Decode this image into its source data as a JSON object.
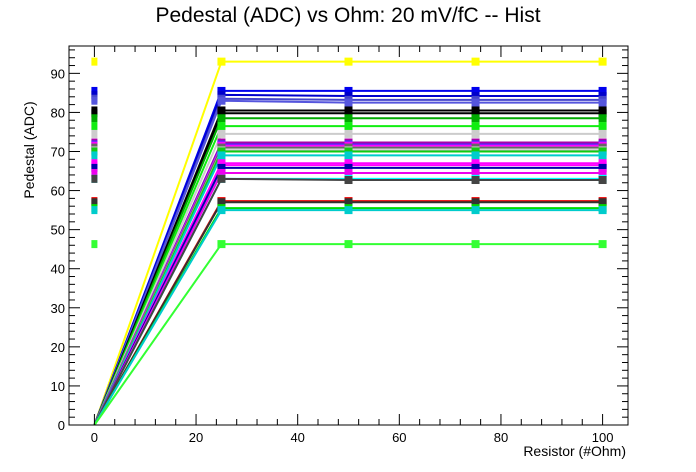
{
  "chart_data": {
    "type": "line",
    "title": "Pedestal (ADC) vs Ohm: 20 mV/fC -- Hist",
    "xlabel": "Resistor (#Ohm)",
    "ylabel": "Pedestal (ADC)",
    "xlim": [
      -5,
      105
    ],
    "ylim": [
      0,
      97
    ],
    "xticks": [
      0,
      20,
      40,
      60,
      80,
      100
    ],
    "yticks": [
      0,
      10,
      20,
      30,
      40,
      50,
      60,
      70,
      80,
      90
    ],
    "x": [
      0,
      25,
      50,
      75,
      100
    ],
    "grid": false,
    "legend": "none",
    "series": [
      {
        "color": "#ffff00",
        "values": [
          0,
          93,
          93,
          93,
          93
        ]
      },
      {
        "color": "#0000ee",
        "values": [
          0,
          85.5,
          85.5,
          85.5,
          85.5
        ]
      },
      {
        "color": "#0000cc",
        "values": [
          0,
          84.5,
          84.2,
          84.2,
          84.2
        ]
      },
      {
        "color": "#4444cc",
        "values": [
          0,
          83.5,
          83.2,
          83.2,
          83.2
        ]
      },
      {
        "color": "#5555dd",
        "values": [
          0,
          83,
          82.5,
          82.5,
          82.5
        ]
      },
      {
        "color": "#000000",
        "values": [
          0,
          80.5,
          80.5,
          80.5,
          80.5
        ]
      },
      {
        "color": "#000000",
        "values": [
          0,
          79.8,
          79.8,
          79.8,
          79.8
        ]
      },
      {
        "color": "#00aa00",
        "values": [
          0,
          78.5,
          78.5,
          78.5,
          78.5
        ]
      },
      {
        "color": "#11ee11",
        "values": [
          0,
          76.5,
          76.5,
          76.5,
          76.5
        ]
      },
      {
        "color": "#cccccc",
        "values": [
          0,
          74.5,
          74.5,
          74.5,
          74.5
        ]
      },
      {
        "color": "#aa00aa",
        "values": [
          0,
          72.3,
          72.3,
          72.3,
          72.3
        ]
      },
      {
        "color": "#3333ff",
        "values": [
          0,
          71.8,
          71.8,
          71.8,
          71.8
        ]
      },
      {
        "color": "#ff00ff",
        "values": [
          0,
          71.5,
          71.5,
          71.5,
          71.5
        ]
      },
      {
        "color": "#666666",
        "values": [
          0,
          71,
          71,
          71,
          71
        ]
      },
      {
        "color": "#bbbbbb",
        "values": [
          0,
          70.3,
          70.3,
          70.3,
          70.3
        ]
      },
      {
        "color": "#11cc11",
        "values": [
          0,
          70,
          70,
          70,
          70
        ]
      },
      {
        "color": "#00cccc",
        "values": [
          0,
          69,
          69,
          69,
          69
        ]
      },
      {
        "color": "#ff00ff",
        "values": [
          0,
          67,
          67,
          67,
          67
        ]
      },
      {
        "color": "#ff00ff",
        "values": [
          0,
          66.5,
          66.5,
          66.5,
          66.5
        ]
      },
      {
        "color": "#0000aa",
        "values": [
          0,
          65.8,
          65.8,
          65.8,
          65.8
        ]
      },
      {
        "color": "#ee00ee",
        "values": [
          0,
          64.5,
          64.5,
          64.5,
          64.5
        ]
      },
      {
        "color": "#00ffff",
        "values": [
          0,
          63,
          63,
          63,
          63
        ]
      },
      {
        "color": "#444444",
        "values": [
          0,
          63,
          62.7,
          62.7,
          62.7
        ]
      },
      {
        "color": "#ee0000",
        "values": [
          0,
          57.3,
          57.3,
          57.3,
          57.3
        ]
      },
      {
        "color": "#333333",
        "values": [
          0,
          57,
          57,
          57,
          57
        ]
      },
      {
        "color": "#00dd00",
        "values": [
          0,
          55.5,
          55.5,
          55.5,
          55.5
        ]
      },
      {
        "color": "#00cccc",
        "values": [
          0,
          55,
          55,
          55,
          55
        ]
      },
      {
        "color": "#33ff33",
        "values": [
          0,
          46.3,
          46.3,
          46.3,
          46.3
        ]
      }
    ]
  }
}
